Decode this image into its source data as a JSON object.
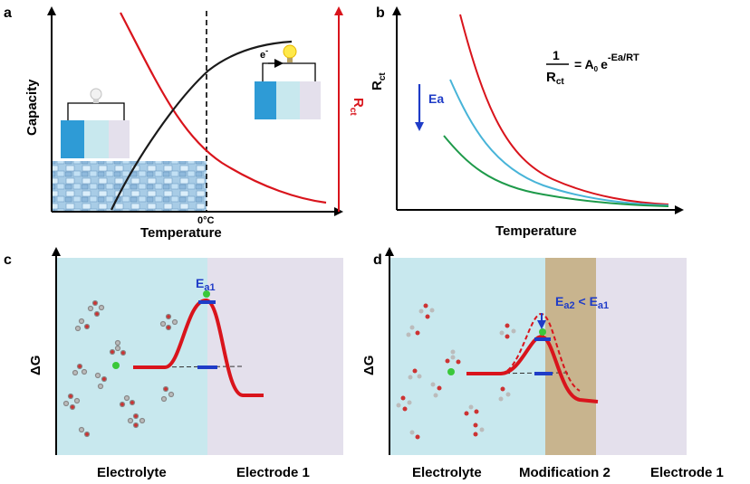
{
  "panels": {
    "a": {
      "label": "a",
      "ylabel_left": "Capacity",
      "ylabel_right_main": "R",
      "ylabel_right_sub": "ct",
      "xlabel": "Temperature",
      "zero_mark": "0°C",
      "electron": "e",
      "electron_sup": "-"
    },
    "b": {
      "label": "b",
      "ylabel_main": "R",
      "ylabel_sub": "ct",
      "xlabel": "Temperature",
      "ea_label": "Ea",
      "eq_num": "1",
      "eq_den_main": "R",
      "eq_den_sub": "ct",
      "eq_eq": "= A",
      "eq_sub0": "0",
      "eq_e": "e",
      "eq_exp": "-Ea/RT"
    },
    "c": {
      "label": "c",
      "ylabel": "ΔG",
      "ea_main": "E",
      "ea_sub": "a1",
      "region1": "Electrolyte",
      "region2": "Electrode 1"
    },
    "d": {
      "label": "d",
      "ylabel": "ΔG",
      "ea2_main": "E",
      "ea2_sub": "a2",
      "lt": " < ",
      "ea1_main": "E",
      "ea1_sub": "a1",
      "region1": "Electrolyte",
      "region2": "Modification 2",
      "region3": "Electrode 1"
    }
  },
  "colors": {
    "red": "#d9141c",
    "blue_line": "#48b4d8",
    "green_line": "#1e9a4a",
    "arrow_blue": "#1f3cc7",
    "electrolyte_bg": "#c8e8ee",
    "electrode_bg": "#e4e0ec",
    "modification_bg": "#c8b48e"
  }
}
